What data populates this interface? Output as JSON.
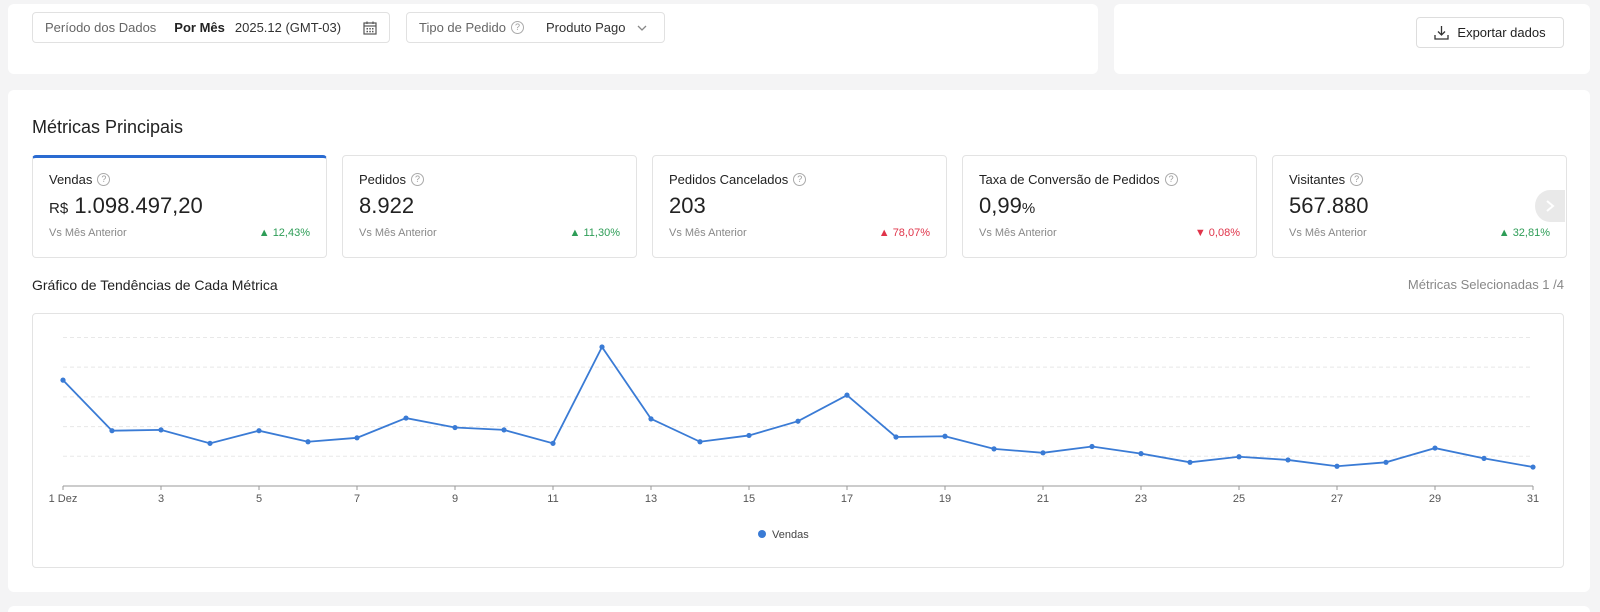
{
  "filters": {
    "period_label": "Período dos Dados",
    "period_mode": "Por Mês",
    "period_value": "2025.12 (GMT-03)",
    "order_type_label": "Tipo de Pedido",
    "order_type_value": "Produto Pago"
  },
  "export_label": "Exportar dados",
  "section_title": "Métricas Principais",
  "metrics": [
    {
      "label": "Vendas",
      "currency": "R$",
      "value": "1.098.497,20",
      "compare": "Vs Mês Anterior",
      "change": "12,43%",
      "direction": "up"
    },
    {
      "label": "Pedidos",
      "value": "8.922",
      "compare": "Vs Mês Anterior",
      "change": "11,30%",
      "direction": "up"
    },
    {
      "label": "Pedidos Cancelados",
      "value": "203",
      "compare": "Vs Mês Anterior",
      "change": "78,07%",
      "direction": "up"
    },
    {
      "label": "Taxa de Conversão de Pedidos",
      "value": "0,99",
      "unit": "%",
      "compare": "Vs Mês Anterior",
      "change": "0,08%",
      "direction": "down"
    },
    {
      "label": "Visitantes",
      "value": "567.880",
      "compare": "Vs Mês Anterior",
      "change": "32,81%",
      "direction": "up"
    }
  ],
  "trend_title": "Gráfico de Tendências de Cada Métrica",
  "selected_info": "Métricas Selecionadas 1 /4",
  "colors": {
    "accent": "#2a6bd1",
    "line": "#3a7bd5",
    "up": "#2e9d57",
    "down": "#e0344a"
  },
  "chart_data": {
    "type": "line",
    "x": [
      1,
      2,
      3,
      4,
      5,
      6,
      7,
      8,
      9,
      10,
      11,
      12,
      13,
      14,
      15,
      16,
      17,
      18,
      19,
      20,
      21,
      22,
      23,
      24,
      25,
      26,
      27,
      28,
      29,
      30,
      31
    ],
    "tick_labels": [
      "1 Dez",
      "3",
      "5",
      "7",
      "9",
      "11",
      "13",
      "15",
      "17",
      "19",
      "21",
      "23",
      "25",
      "27",
      "29",
      "31"
    ],
    "series": [
      {
        "name": "Vendas",
        "values": [
          67,
          35,
          35.5,
          27,
          35,
          28,
          30.5,
          43,
          37,
          35.5,
          27,
          88,
          42.5,
          28,
          32,
          41,
          57.5,
          31,
          31.5,
          23.5,
          21,
          25,
          20.5,
          15,
          18.5,
          16.5,
          12.5,
          15,
          24,
          17.5,
          12
        ]
      }
    ],
    "ylim": [
      0,
      100
    ],
    "grid": true,
    "legend": "bottom"
  }
}
